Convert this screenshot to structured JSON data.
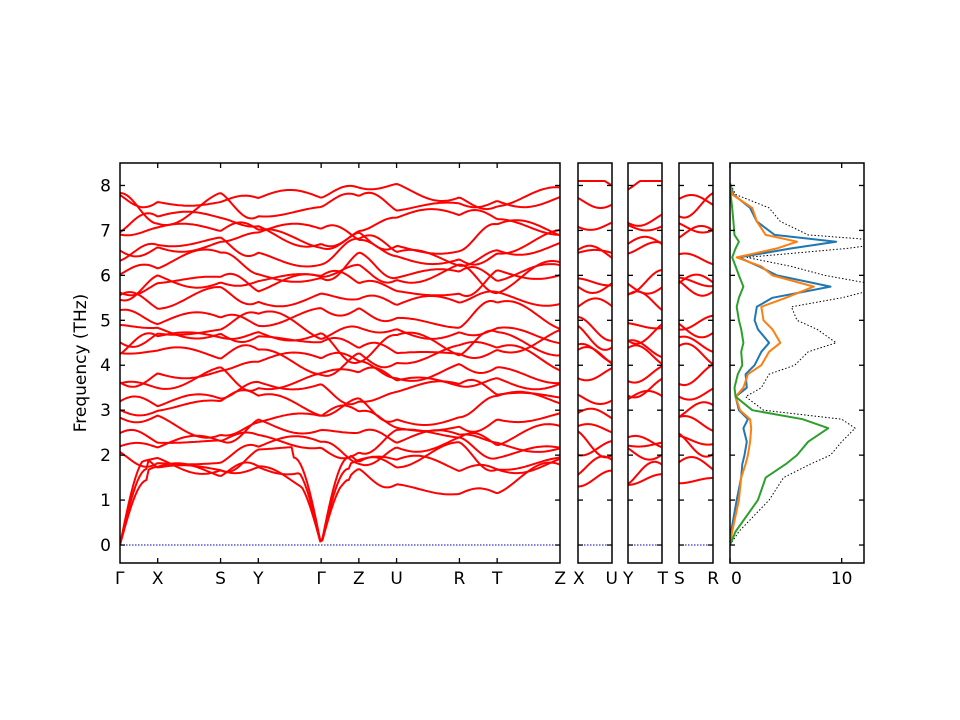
{
  "chart_data": {
    "type": "line",
    "ylabel": "Frequency (THz)",
    "ylim": [
      -0.4,
      8.5
    ],
    "yticks": [
      "0",
      "1",
      "2",
      "3",
      "4",
      "5",
      "6",
      "7",
      "8"
    ],
    "band_panels": [
      {
        "segments": [
          {
            "from": "Γ",
            "to": "X",
            "length": 0.3
          },
          {
            "from": "X",
            "to": "S",
            "length": 0.5
          },
          {
            "from": "S",
            "to": "Y",
            "length": 0.3
          },
          {
            "from": "Y",
            "to": "Γ",
            "length": 0.5
          },
          {
            "from": "Γ",
            "to": "Z",
            "length": 0.3
          },
          {
            "from": "Z",
            "to": "U",
            "length": 0.3
          },
          {
            "from": "U",
            "to": "R",
            "length": 0.5
          },
          {
            "from": "R",
            "to": "T",
            "length": 0.3
          },
          {
            "from": "T",
            "to": "Z",
            "length": 0.5
          }
        ],
        "labels": [
          "Γ",
          "X",
          "S",
          "Y",
          "Γ",
          "Z",
          "U",
          "R",
          "T",
          "Z"
        ]
      },
      {
        "segments": [
          {
            "from": "X",
            "to": "U",
            "length": 0.3
          }
        ],
        "labels": [
          "X",
          "U"
        ]
      },
      {
        "segments": [
          {
            "from": "Y",
            "to": "T",
            "length": 0.3
          }
        ],
        "labels": [
          "Y",
          "T"
        ]
      },
      {
        "segments": [
          {
            "from": "S",
            "to": "R",
            "length": 0.3
          }
        ],
        "labels": [
          "S",
          "R"
        ]
      }
    ],
    "band_color": "#ff0000",
    "zero_line_color": "#0000cc",
    "dos": {
      "xlim": [
        0,
        12
      ],
      "xticks": [
        "0",
        "10"
      ],
      "series_colors": [
        "#1f77b4",
        "#ff7f0e",
        "#2ca02c"
      ],
      "total_color": "#000000",
      "freq": [
        0.3,
        1.0,
        1.5,
        1.8,
        2.0,
        2.3,
        2.6,
        2.8,
        3.0,
        3.3,
        3.5,
        3.8,
        4.0,
        4.3,
        4.5,
        4.8,
        5.0,
        5.3,
        5.5,
        5.75,
        6.0,
        6.2,
        6.4,
        6.6,
        6.75,
        6.9,
        7.2,
        7.5,
        7.8
      ],
      "series": [
        {
          "values": [
            0.1,
            0.6,
            1.0,
            1.1,
            1.3,
            1.5,
            1.2,
            1.6,
            0.8,
            0.5,
            1.5,
            1.4,
            2.2,
            2.8,
            3.5,
            2.5,
            2.2,
            2.4,
            3.8,
            9.0,
            4.2,
            2.6,
            0.8,
            5.5,
            9.5,
            4.0,
            2.4,
            1.8,
            0.3
          ]
        },
        {
          "values": [
            0.2,
            0.8,
            1.0,
            1.4,
            1.6,
            1.8,
            1.9,
            1.8,
            0.9,
            0.5,
            1.2,
            1.6,
            2.8,
            3.5,
            4.5,
            3.8,
            3.0,
            2.8,
            5.0,
            7.5,
            3.8,
            2.8,
            0.6,
            4.2,
            6.0,
            3.2,
            2.4,
            2.0,
            0.2
          ]
        },
        {
          "values": [
            0.5,
            2.5,
            3.2,
            5.0,
            6.0,
            7.0,
            8.8,
            6.5,
            2.0,
            0.5,
            0.4,
            0.7,
            1.1,
            1.0,
            1.2,
            1.0,
            0.8,
            0.6,
            0.8,
            1.2,
            0.8,
            0.5,
            0.2,
            0.5,
            0.8,
            0.4,
            0.3,
            0.2,
            0.05
          ]
        }
      ],
      "total": [
        0.8,
        3.5,
        4.8,
        7.2,
        9.0,
        10.0,
        11.2,
        10.0,
        3.0,
        1.4,
        2.8,
        3.5,
        5.8,
        7.0,
        9.5,
        7.8,
        6.0,
        5.5,
        10.0,
        14.0,
        8.5,
        5.5,
        1.5,
        10.5,
        15.0,
        7.0,
        4.5,
        3.5,
        0.5
      ]
    }
  }
}
